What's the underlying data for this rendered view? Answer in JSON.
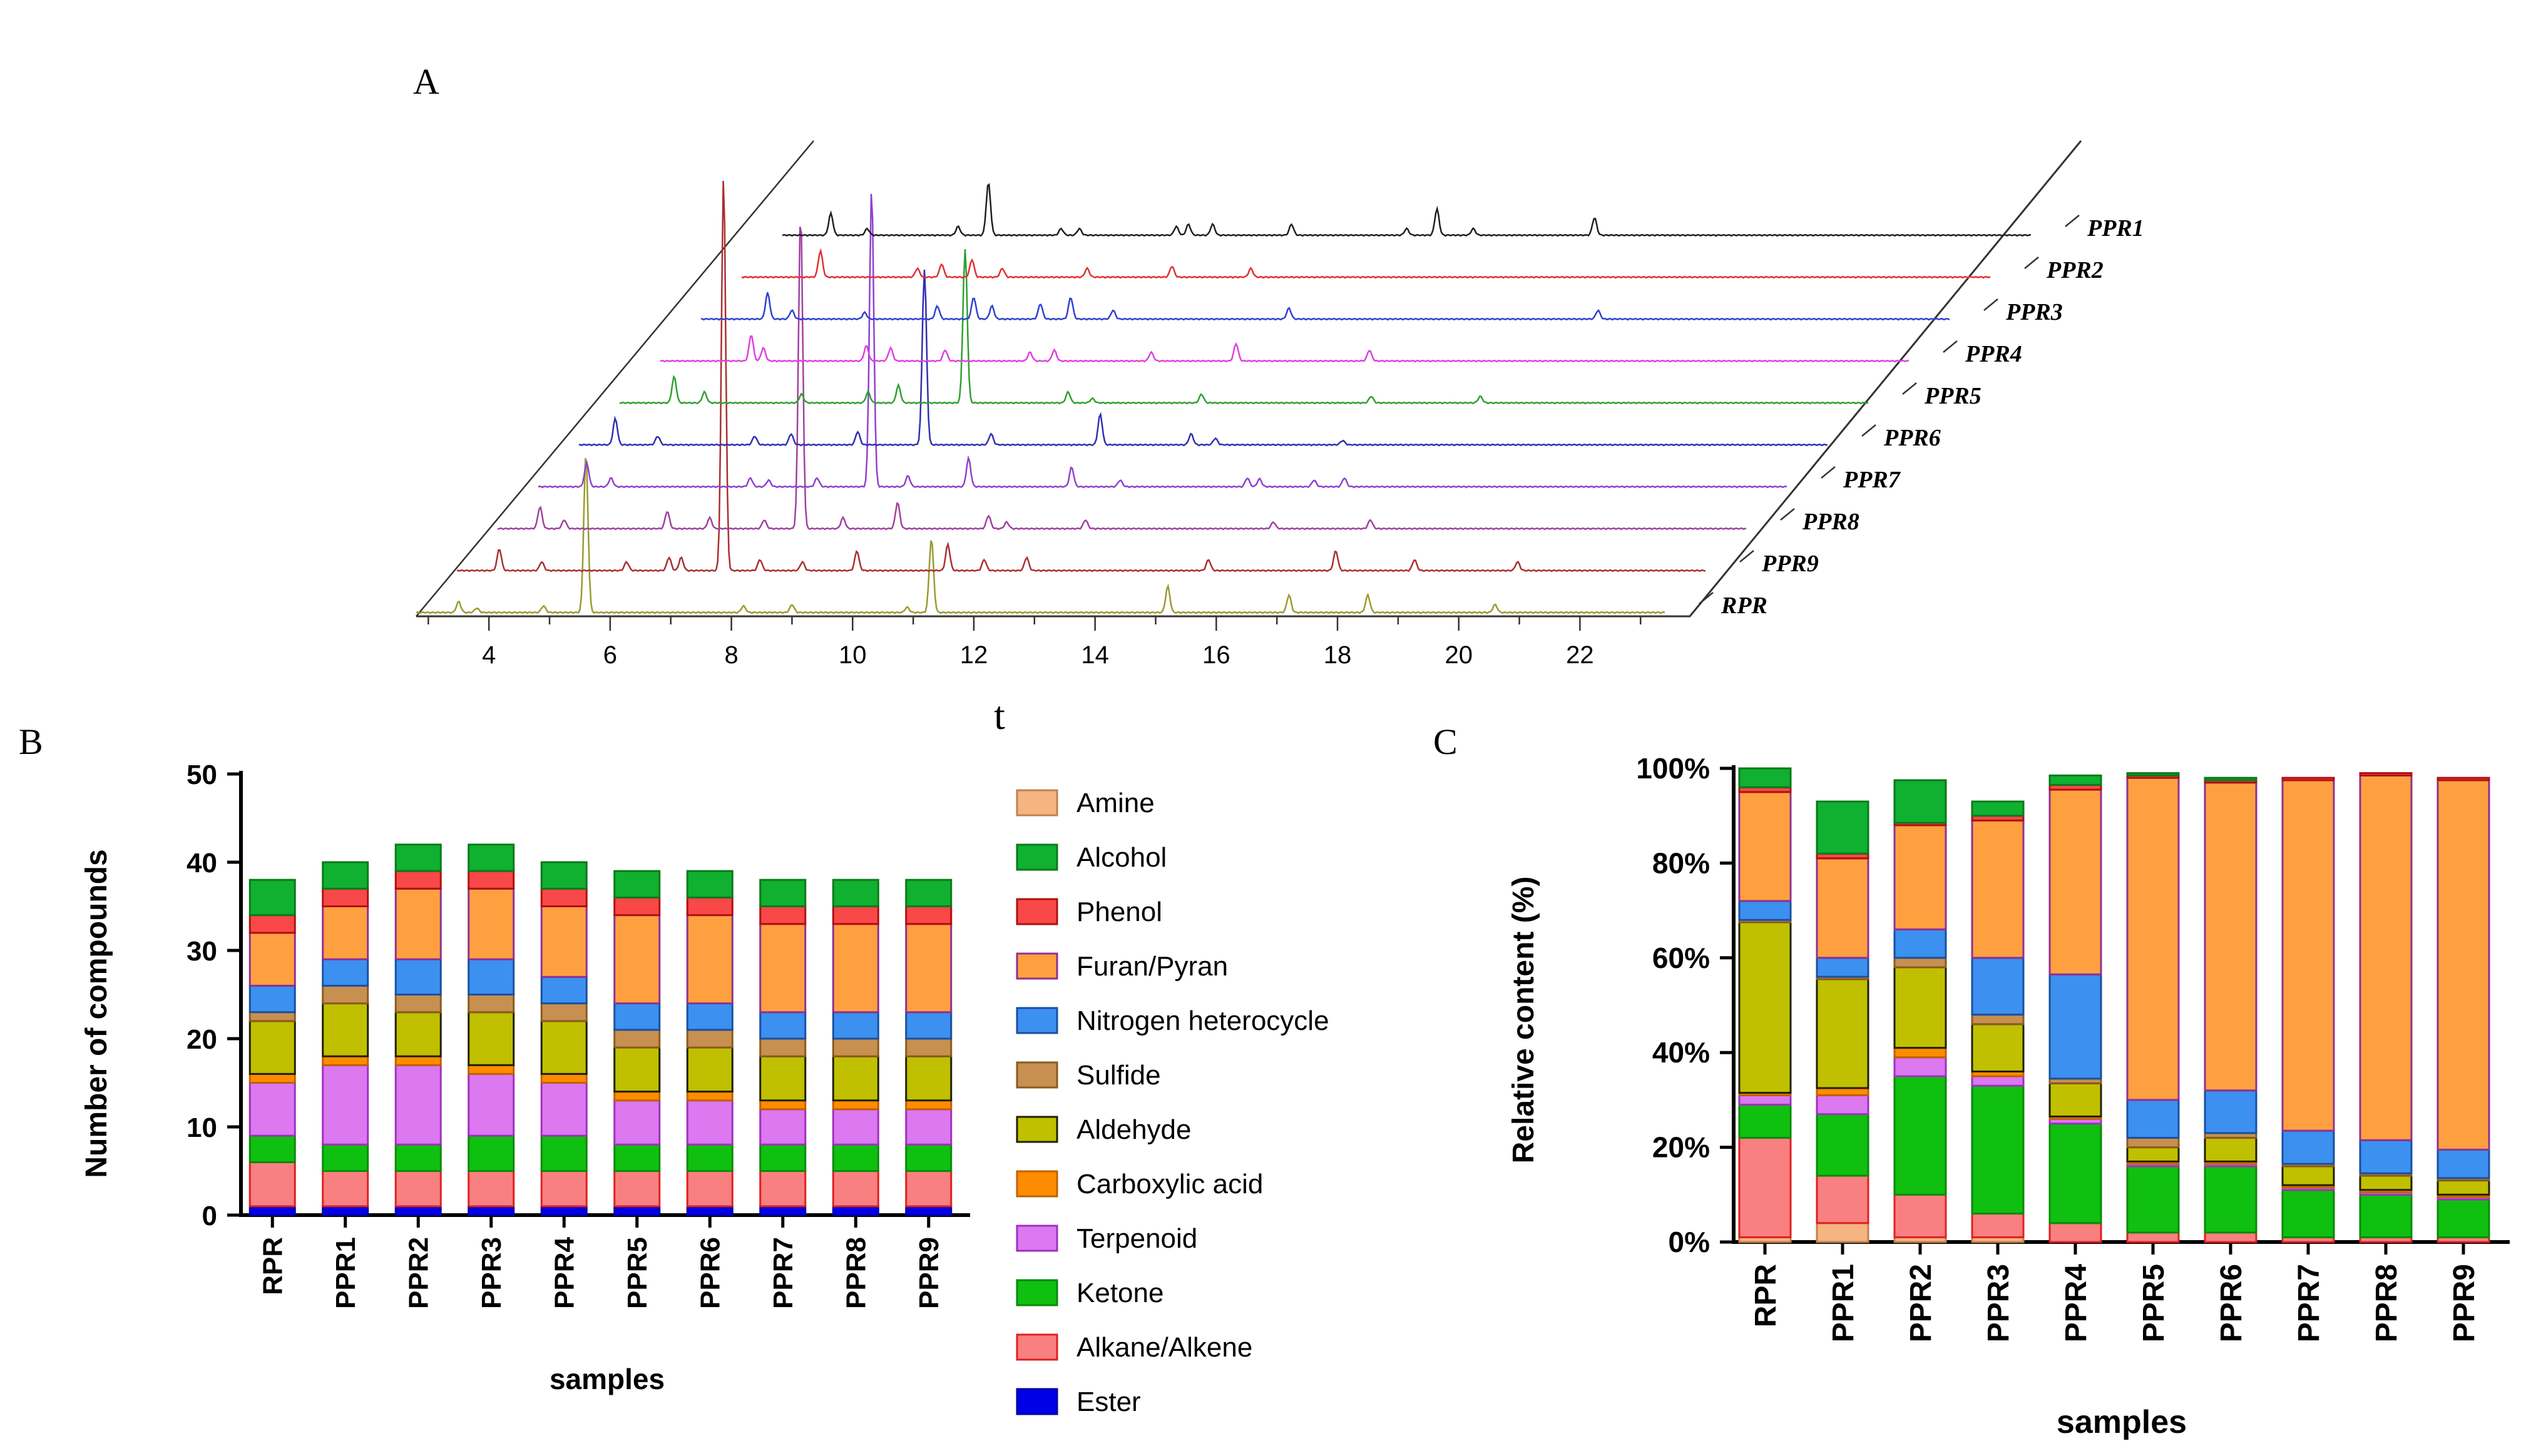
{
  "panel_labels": {
    "A": "A",
    "B": "B",
    "C": "C"
  },
  "chart_data": [
    {
      "type": "line",
      "title": "A",
      "xlabel": "t",
      "xlim": [
        2.8,
        23.4
      ],
      "x_ticks": [
        4,
        6,
        8,
        10,
        12,
        14,
        16,
        18,
        20,
        22
      ],
      "series_names": [
        "RPR",
        "PPR9",
        "PPR8",
        "PPR7",
        "PPR6",
        "PPR5",
        "PPR4",
        "PPR3",
        "PPR2",
        "PPR1"
      ],
      "series_colors": [
        "#9a9a30",
        "#a83030",
        "#a040a0",
        "#9040d0",
        "#3030b0",
        "#30a030",
        "#e040e0",
        "#3040d0",
        "#e03030",
        "#202020"
      ],
      "series_peaks": [
        [
          [
            3.5,
            25
          ],
          [
            3.8,
            10
          ],
          [
            4.9,
            15
          ],
          [
            5.6,
            360
          ],
          [
            8.2,
            15
          ],
          [
            9.0,
            18
          ],
          [
            10.9,
            12
          ],
          [
            11.3,
            170
          ],
          [
            15.2,
            60
          ],
          [
            17.2,
            40
          ],
          [
            18.5,
            40
          ],
          [
            20.6,
            18
          ]
        ],
        [
          [
            3.5,
            50
          ],
          [
            4.2,
            20
          ],
          [
            5.6,
            20
          ],
          [
            6.3,
            30
          ],
          [
            6.5,
            30
          ],
          [
            7.2,
            900
          ],
          [
            7.8,
            25
          ],
          [
            8.5,
            20
          ],
          [
            9.4,
            45
          ],
          [
            10.9,
            60
          ],
          [
            11.5,
            25
          ],
          [
            12.2,
            30
          ],
          [
            15.2,
            25
          ],
          [
            17.3,
            45
          ],
          [
            18.6,
            25
          ],
          [
            20.3,
            20
          ]
        ],
        [
          [
            3.5,
            50
          ],
          [
            3.9,
            20
          ],
          [
            5.6,
            40
          ],
          [
            6.3,
            25
          ],
          [
            7.2,
            20
          ],
          [
            7.8,
            720
          ],
          [
            8.5,
            25
          ],
          [
            9.4,
            60
          ],
          [
            10.9,
            30
          ],
          [
            11.2,
            15
          ],
          [
            12.5,
            20
          ],
          [
            15.6,
            15
          ],
          [
            17.2,
            20
          ]
        ],
        [
          [
            3.6,
            55
          ],
          [
            4.0,
            20
          ],
          [
            6.3,
            20
          ],
          [
            6.6,
            15
          ],
          [
            7.4,
            20
          ],
          [
            8.3,
            680
          ],
          [
            8.9,
            25
          ],
          [
            9.9,
            65
          ],
          [
            11.6,
            45
          ],
          [
            12.4,
            15
          ],
          [
            14.5,
            20
          ],
          [
            14.7,
            18
          ],
          [
            15.6,
            15
          ],
          [
            16.1,
            20
          ]
        ],
        [
          [
            3.4,
            60
          ],
          [
            4.1,
            20
          ],
          [
            5.7,
            20
          ],
          [
            6.3,
            25
          ],
          [
            7.4,
            30
          ],
          [
            8.5,
            400
          ],
          [
            9.6,
            25
          ],
          [
            11.4,
            70
          ],
          [
            12.9,
            25
          ],
          [
            13.3,
            15
          ],
          [
            15.4,
            10
          ]
        ],
        [
          [
            3.7,
            60
          ],
          [
            4.2,
            25
          ],
          [
            5.8,
            20
          ],
          [
            6.9,
            25
          ],
          [
            7.4,
            40
          ],
          [
            8.5,
            350
          ],
          [
            10.2,
            25
          ],
          [
            10.6,
            10
          ],
          [
            12.4,
            20
          ],
          [
            15.2,
            15
          ],
          [
            17.0,
            15
          ]
        ],
        [
          [
            4.3,
            60
          ],
          [
            4.5,
            30
          ],
          [
            6.2,
            35
          ],
          [
            6.6,
            30
          ],
          [
            7.5,
            25
          ],
          [
            8.9,
            20
          ],
          [
            9.3,
            25
          ],
          [
            10.9,
            20
          ],
          [
            12.3,
            40
          ],
          [
            14.5,
            25
          ]
        ],
        [
          [
            3.9,
            60
          ],
          [
            4.3,
            20
          ],
          [
            5.5,
            15
          ],
          [
            6.7,
            30
          ],
          [
            7.3,
            50
          ],
          [
            7.6,
            30
          ],
          [
            8.4,
            35
          ],
          [
            8.9,
            50
          ],
          [
            9.6,
            20
          ],
          [
            12.5,
            25
          ],
          [
            17.6,
            20
          ]
        ],
        [
          [
            4.1,
            60
          ],
          [
            5.7,
            20
          ],
          [
            6.1,
            30
          ],
          [
            6.6,
            40
          ],
          [
            7.1,
            20
          ],
          [
            8.5,
            20
          ],
          [
            9.9,
            25
          ],
          [
            11.2,
            20
          ]
        ],
        [
          [
            3.6,
            50
          ],
          [
            4.2,
            15
          ],
          [
            5.7,
            20
          ],
          [
            6.2,
            120
          ],
          [
            7.4,
            15
          ],
          [
            7.7,
            15
          ],
          [
            9.3,
            20
          ],
          [
            9.5,
            25
          ],
          [
            9.9,
            25
          ],
          [
            11.2,
            25
          ],
          [
            13.1,
            15
          ],
          [
            13.6,
            60
          ],
          [
            14.2,
            15
          ],
          [
            16.2,
            40
          ]
        ]
      ]
    },
    {
      "type": "bar",
      "stacked": true,
      "title": "B",
      "xlabel": "samples",
      "ylabel": "Number of compounds",
      "ylim": [
        0,
        50
      ],
      "y_ticks": [
        0,
        10,
        20,
        30,
        40,
        50
      ],
      "categories": [
        "RPR",
        "PPR1",
        "PPR2",
        "PPR3",
        "PPR4",
        "PPR5",
        "PPR6",
        "PPR7",
        "PPR8",
        "PPR9"
      ],
      "series": [
        {
          "name": "Ester",
          "color": "#0000e6",
          "edge": "#0000aa",
          "values": [
            1,
            1,
            1,
            1,
            1,
            1,
            1,
            1,
            1,
            1
          ]
        },
        {
          "name": "Alkane/Alkene",
          "color": "#f88080",
          "edge": "#e02020",
          "values": [
            5,
            4,
            4,
            4,
            4,
            4,
            4,
            4,
            4,
            4
          ]
        },
        {
          "name": "Ketone",
          "color": "#10c010",
          "edge": "#0a8a0a",
          "values": [
            3,
            3,
            3,
            4,
            4,
            3,
            3,
            3,
            3,
            3
          ]
        },
        {
          "name": "Terpenoid",
          "color": "#dc78f0",
          "edge": "#a030c0",
          "values": [
            6,
            9,
            9,
            7,
            6,
            5,
            5,
            4,
            4,
            4
          ]
        },
        {
          "name": "Carboxylic acid",
          "color": "#ff8c00",
          "edge": "#c06000",
          "values": [
            1,
            1,
            1,
            1,
            1,
            1,
            1,
            1,
            1,
            1
          ]
        },
        {
          "name": "Aldehyde",
          "color": "#c0c000",
          "edge": "#202000",
          "values": [
            6,
            6,
            5,
            6,
            6,
            5,
            5,
            5,
            5,
            5
          ]
        },
        {
          "name": "Sulfide",
          "color": "#c89050",
          "edge": "#8a5a20",
          "values": [
            1,
            2,
            2,
            2,
            2,
            2,
            2,
            2,
            2,
            2
          ]
        },
        {
          "name": "Nitrogen heterocycle",
          "color": "#3c90f0",
          "edge": "#1a50a0",
          "values": [
            3,
            3,
            4,
            4,
            3,
            3,
            3,
            3,
            3,
            3
          ]
        },
        {
          "name": "Furan/Pyran",
          "color": "#ffa040",
          "edge": "#903090",
          "values": [
            6,
            6,
            8,
            8,
            8,
            10,
            10,
            10,
            10,
            10
          ]
        },
        {
          "name": "Phenol",
          "color": "#f84848",
          "edge": "#b01010",
          "values": [
            2,
            2,
            2,
            2,
            2,
            2,
            2,
            2,
            2,
            2
          ]
        },
        {
          "name": "Alcohol",
          "color": "#10b030",
          "edge": "#0a7a1a",
          "values": [
            4,
            3,
            3,
            3,
            3,
            3,
            3,
            3,
            3,
            3
          ]
        },
        {
          "name": "Amine",
          "color": "#f5b480",
          "edge": "#c08050",
          "values": [
            0,
            0,
            0,
            0,
            0,
            0,
            0,
            0,
            0,
            0
          ]
        }
      ]
    },
    {
      "type": "bar",
      "stacked": true,
      "title": "C",
      "xlabel": "samples",
      "ylabel": "Relative content (%)",
      "ylim": [
        0,
        100
      ],
      "y_ticks": [
        "0%",
        "20%",
        "40%",
        "60%",
        "80%",
        "100%"
      ],
      "categories": [
        "RPR",
        "PPR1",
        "PPR2",
        "PPR3",
        "PPR4",
        "PPR5",
        "PPR6",
        "PPR7",
        "PPR8",
        "PPR9"
      ],
      "series": [
        {
          "name": "Amine",
          "values": [
            1,
            4,
            1,
            1,
            0,
            0,
            0,
            0,
            0,
            0
          ]
        },
        {
          "name": "Ester",
          "values": [
            0,
            0,
            0,
            0,
            0,
            0,
            0,
            0,
            0,
            0
          ]
        },
        {
          "name": "Alkane/Alkene",
          "values": [
            21,
            10,
            9,
            5,
            4,
            2,
            2,
            1,
            1,
            1
          ]
        },
        {
          "name": "Ketone",
          "values": [
            7,
            13,
            25,
            27,
            21,
            14,
            14,
            10,
            9,
            8
          ]
        },
        {
          "name": "Terpenoid",
          "values": [
            2,
            4,
            4,
            2,
            1,
            0.5,
            0.5,
            0.5,
            0.5,
            0.5
          ]
        },
        {
          "name": "Carboxylic acid",
          "values": [
            0.5,
            1.5,
            2,
            1,
            0.5,
            0.5,
            0.5,
            0.5,
            0.5,
            0.5
          ]
        },
        {
          "name": "Aldehyde",
          "values": [
            36,
            23,
            17,
            10,
            7,
            3,
            5,
            4,
            3,
            3
          ]
        },
        {
          "name": "Sulfide",
          "values": [
            0.5,
            0.5,
            2,
            2,
            1,
            2,
            1,
            0.5,
            0.5,
            0.5
          ]
        },
        {
          "name": "Nitrogen heterocycle",
          "values": [
            4,
            4,
            6,
            12,
            22,
            8,
            9,
            7,
            7,
            6
          ]
        },
        {
          "name": "Furan/Pyran",
          "values": [
            23,
            21,
            22,
            29,
            39,
            68,
            65,
            74,
            77,
            78
          ]
        },
        {
          "name": "Phenol",
          "values": [
            1,
            1,
            0.5,
            1,
            1,
            0.5,
            0.5,
            0.5,
            0.5,
            0.5
          ]
        },
        {
          "name": "Alcohol",
          "values": [
            4,
            11,
            9,
            3,
            2,
            0.5,
            0.5,
            0,
            0,
            0
          ]
        }
      ]
    }
  ]
}
